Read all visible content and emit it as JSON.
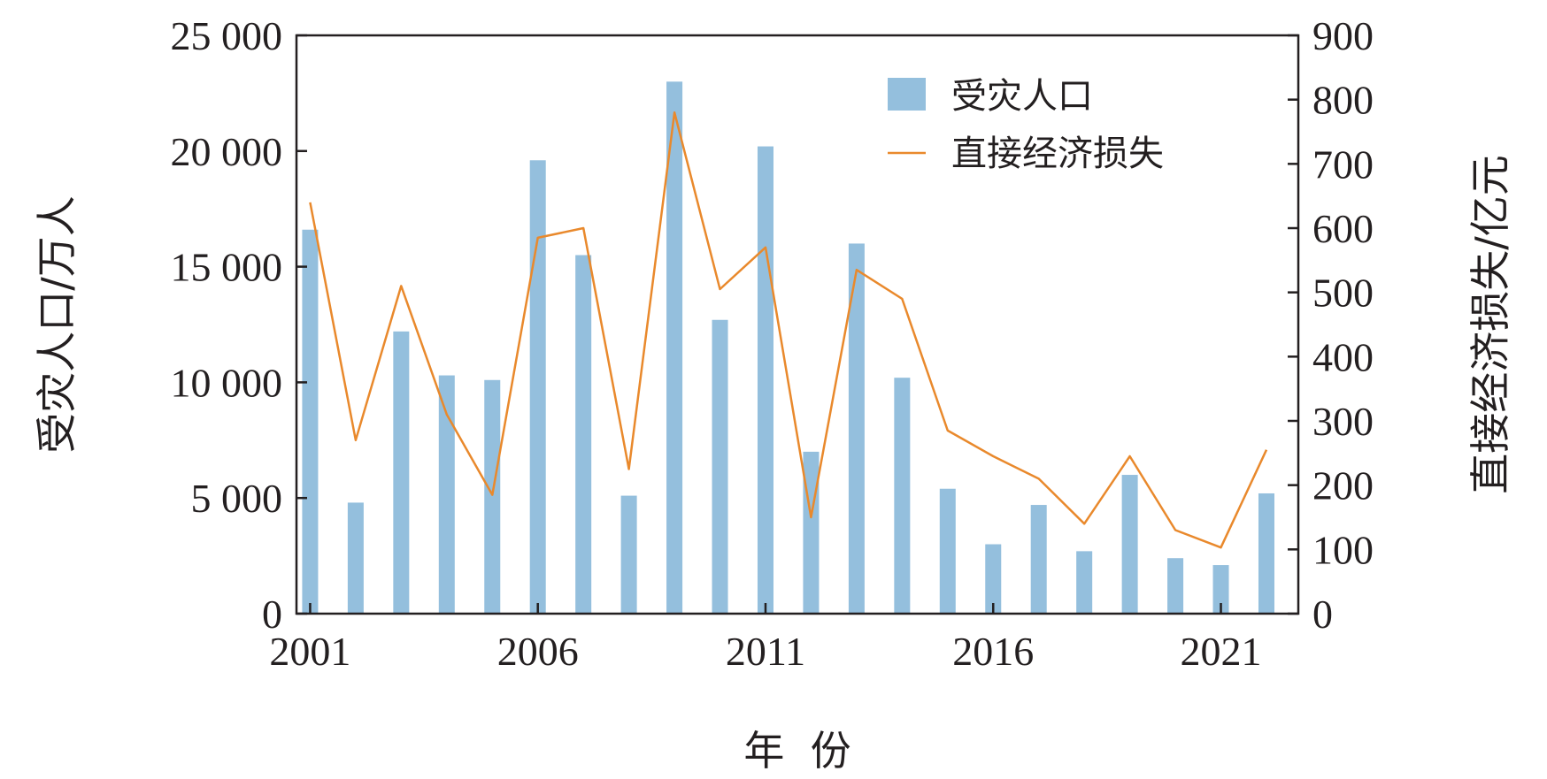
{
  "chart_data": {
    "type": "bar+line",
    "x": [
      2001,
      2002,
      2003,
      2004,
      2005,
      2006,
      2007,
      2008,
      2009,
      2010,
      2011,
      2012,
      2013,
      2014,
      2015,
      2016,
      2017,
      2018,
      2019,
      2020,
      2021,
      2022
    ],
    "series": [
      {
        "name": "受灾人口",
        "type": "bar",
        "axis": "left",
        "color": "#94bfdd",
        "values": [
          16600,
          4800,
          12200,
          10300,
          10100,
          19600,
          15500,
          5100,
          23000,
          12700,
          20200,
          7000,
          16000,
          10200,
          5400,
          3000,
          4700,
          2700,
          6000,
          2400,
          2100,
          5200
        ]
      },
      {
        "name": "直接经济损失",
        "type": "line",
        "axis": "right",
        "color": "#e9892c",
        "values": [
          640,
          270,
          510,
          310,
          185,
          585,
          600,
          225,
          780,
          505,
          570,
          150,
          535,
          490,
          285,
          245,
          210,
          140,
          245,
          130,
          103,
          255
        ]
      }
    ],
    "xticks": [
      "2001",
      "2006",
      "2011",
      "2016",
      "2021"
    ],
    "xlabel": "年  份",
    "ylabel_left": "受灾人口/万人",
    "ylabel_right": "直接经济损失/亿元",
    "yticks_left": [
      "0",
      "5 000",
      "10 000",
      "15 000",
      "20 000",
      "25 000"
    ],
    "yticks_right": [
      "0",
      "100",
      "200",
      "300",
      "400",
      "500",
      "600",
      "700",
      "800",
      "900"
    ],
    "ylim_left": [
      0,
      25000
    ],
    "ylim_right": [
      0,
      900
    ],
    "xlim": [
      2000.7,
      2022.7
    ],
    "grid": false,
    "legend_position": "top-right"
  }
}
